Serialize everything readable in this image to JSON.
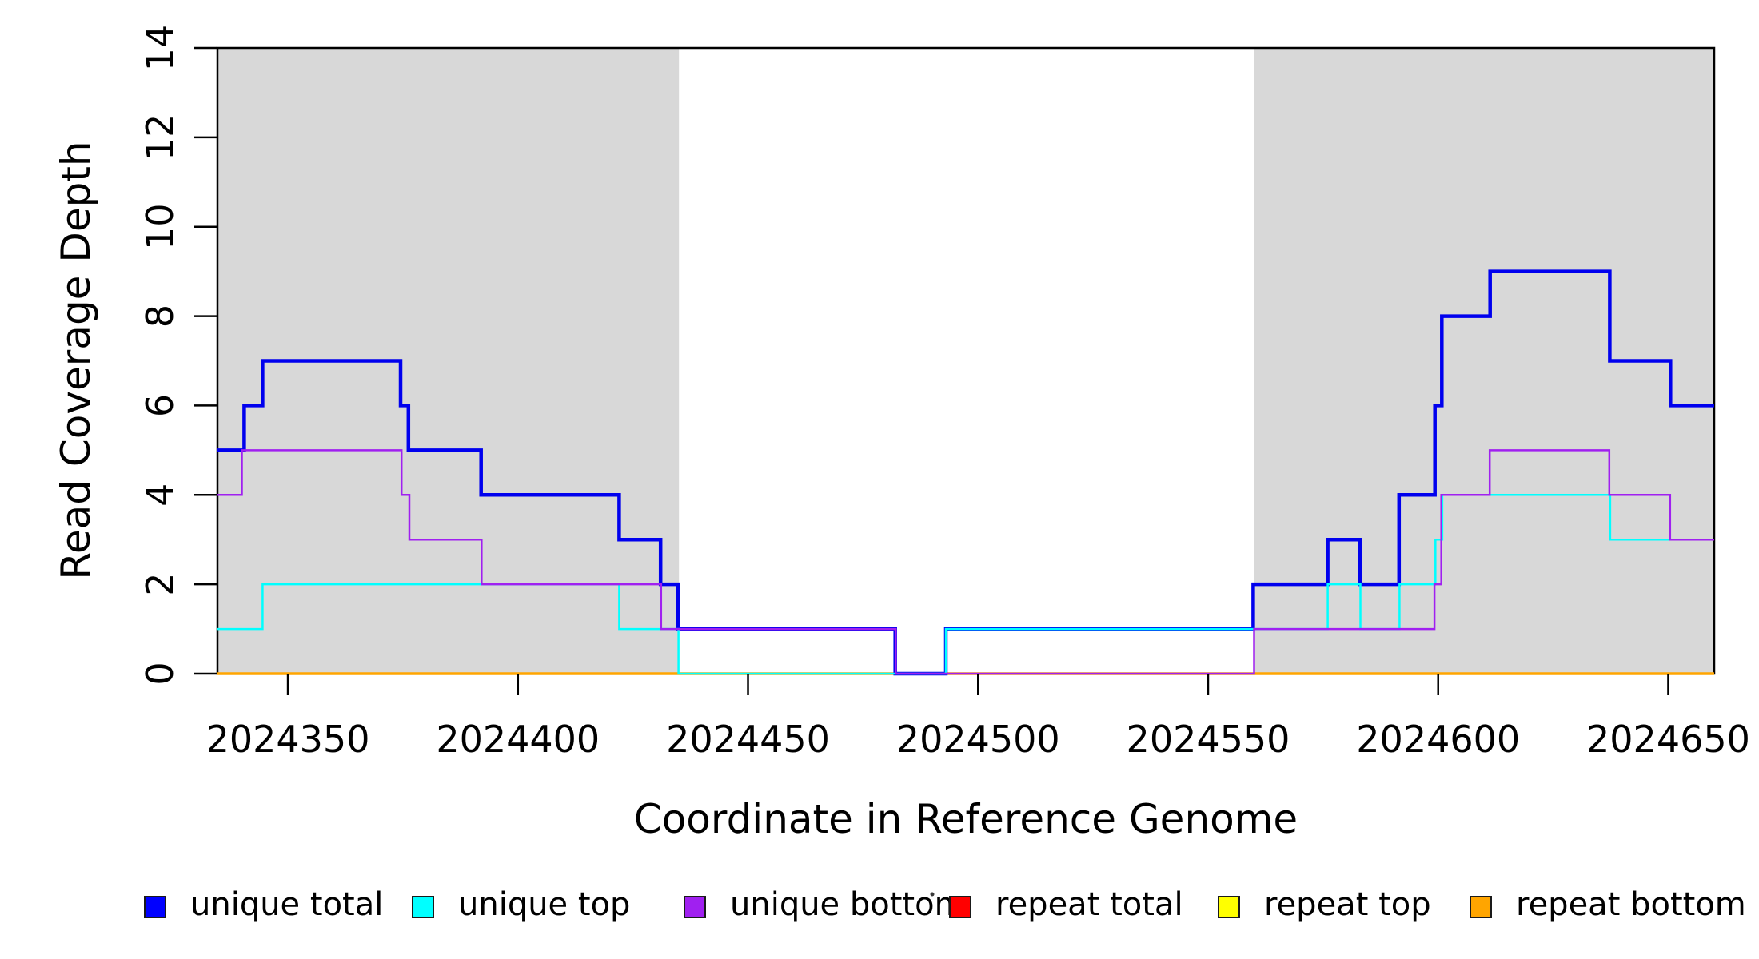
{
  "chart_data": {
    "type": "line",
    "subtype": "step-coverage-plot",
    "title": "",
    "xlabel": "Coordinate in Reference Genome",
    "ylabel": "Read Coverage Depth",
    "xlim": [
      2024334.7,
      2024660
    ],
    "ylim": [
      0,
      14
    ],
    "x_ticks": [
      2024350,
      2024400,
      2024450,
      2024500,
      2024550,
      2024600,
      2024650
    ],
    "y_ticks": [
      0,
      2,
      4,
      6,
      8,
      10,
      12,
      14
    ],
    "grid": "off",
    "legend_position": "bottom-horizontal",
    "shade_color": "#D8D8D8",
    "axis_color": "#000000",
    "background_color": "#FFFFFF",
    "shaded_regions": [
      {
        "x0": 2024334.7,
        "x1": 2024435
      },
      {
        "x0": 2024560,
        "x1": 2024660
      }
    ],
    "x_end": 2024660,
    "series": [
      {
        "name": "repeat total",
        "color": "#FF0000",
        "line_width": 2.5,
        "steps": [
          [
            2024334.7,
            0
          ]
        ]
      },
      {
        "name": "repeat top",
        "color": "#FFFF00",
        "line_width": 2.5,
        "steps": [
          [
            2024334.7,
            0
          ]
        ]
      },
      {
        "name": "repeat bottom",
        "color": "#FFA500",
        "line_width": 3.5,
        "steps": [
          [
            2024334.7,
            0
          ]
        ]
      },
      {
        "name": "unique total",
        "color": "#0000EE",
        "line_width": 4.5,
        "steps": [
          [
            2024334.7,
            5
          ],
          [
            2024340.5,
            6
          ],
          [
            2024344.5,
            7
          ],
          [
            2024374.5,
            6
          ],
          [
            2024376.2,
            5
          ],
          [
            2024392.0,
            4
          ],
          [
            2024422.0,
            3
          ],
          [
            2024431.0,
            2
          ],
          [
            2024434.8,
            1
          ],
          [
            2024482.0,
            0
          ],
          [
            2024493.0,
            1
          ],
          [
            2024559.8,
            2
          ],
          [
            2024576.0,
            3
          ],
          [
            2024583.0,
            2
          ],
          [
            2024591.5,
            4
          ],
          [
            2024599.3,
            6
          ],
          [
            2024600.8,
            8
          ],
          [
            2024611.3,
            9
          ],
          [
            2024637.3,
            7
          ],
          [
            2024650.5,
            6
          ]
        ]
      },
      {
        "name": "unique top",
        "color": "#00FFFF",
        "line_width": 2.5,
        "steps": [
          [
            2024334.7,
            1
          ],
          [
            2024344.5,
            2
          ],
          [
            2024422.0,
            1
          ],
          [
            2024434.9,
            0
          ],
          [
            2024493.0,
            1
          ],
          [
            2024576.0,
            2
          ],
          [
            2024583.1,
            1
          ],
          [
            2024591.6,
            2
          ],
          [
            2024599.4,
            3
          ],
          [
            2024600.9,
            4
          ],
          [
            2024637.4,
            3
          ]
        ]
      },
      {
        "name": "unique bottom",
        "color": "#A020F0",
        "line_width": 2.5,
        "steps": [
          [
            2024334.7,
            4
          ],
          [
            2024340.0,
            5
          ],
          [
            2024374.7,
            4
          ],
          [
            2024376.4,
            3
          ],
          [
            2024392.1,
            2
          ],
          [
            2024431.1,
            1
          ],
          [
            2024482.1,
            0
          ],
          [
            2024560.0,
            1
          ],
          [
            2024599.2,
            2
          ],
          [
            2024600.7,
            4
          ],
          [
            2024611.2,
            5
          ],
          [
            2024637.2,
            4
          ],
          [
            2024650.4,
            3
          ]
        ]
      }
    ],
    "legend": {
      "items": [
        {
          "label": "unique total",
          "color": "#0000FF"
        },
        {
          "label": "unique top",
          "color": "#00FFFF"
        },
        {
          "label": "unique bottom",
          "color": "#A020F0"
        },
        {
          "label": "repeat total",
          "color": "#FF0000"
        },
        {
          "label": "repeat top",
          "color": "#FFFF00"
        },
        {
          "label": "repeat bottom",
          "color": "#FFA500"
        }
      ]
    }
  }
}
